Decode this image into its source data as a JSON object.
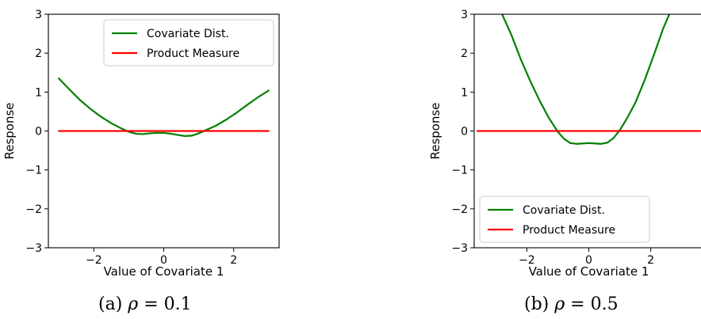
{
  "captions": [
    {
      "label": "(a)",
      "symbol": "ρ",
      "equals": " = ",
      "value": "0.1"
    },
    {
      "label": "(b)",
      "symbol": "ρ",
      "equals": " = ",
      "value": "0.5"
    }
  ],
  "colors": {
    "covariate": "#008000",
    "product": "#ff0000",
    "axis": "#000000"
  },
  "chart_data": [
    {
      "type": "line",
      "xlabel": "Value of Covariate 1",
      "ylabel": "Response",
      "xlim": [
        -3.3,
        3.3
      ],
      "ylim": [
        -3,
        3
      ],
      "xticks": [
        -2,
        0,
        2
      ],
      "yticks": [
        -3,
        -2,
        -1,
        0,
        1,
        2,
        3
      ],
      "xtick_labels": [
        "−2",
        "0",
        "2"
      ],
      "ytick_labels": [
        "−3",
        "−2",
        "−1",
        "0",
        "1",
        "2",
        "3"
      ],
      "legend_position": "top-right",
      "grid": false,
      "series": [
        {
          "name": "Covariate Dist.",
          "color": "#008000",
          "x": [
            -3.0,
            -2.7,
            -2.4,
            -2.1,
            -1.8,
            -1.5,
            -1.2,
            -1.0,
            -0.8,
            -0.6,
            -0.4,
            -0.2,
            0.0,
            0.2,
            0.4,
            0.6,
            0.8,
            1.0,
            1.2,
            1.5,
            1.8,
            2.1,
            2.4,
            2.7,
            3.0
          ],
          "y": [
            1.35,
            1.07,
            0.8,
            0.57,
            0.37,
            0.2,
            0.06,
            -0.02,
            -0.07,
            -0.08,
            -0.06,
            -0.05,
            -0.05,
            -0.07,
            -0.1,
            -0.13,
            -0.12,
            -0.06,
            0.02,
            0.14,
            0.3,
            0.48,
            0.68,
            0.87,
            1.04
          ]
        },
        {
          "name": "Product Measure",
          "color": "#ff0000",
          "x": [
            -3.0,
            3.0
          ],
          "y": [
            0,
            0
          ]
        }
      ]
    },
    {
      "type": "line",
      "xlabel": "Value of Covariate 1",
      "ylabel": "Response",
      "xlim": [
        -3.7,
        3.7
      ],
      "ylim": [
        -3,
        3
      ],
      "xticks": [
        -2,
        0,
        2
      ],
      "yticks": [
        -3,
        -2,
        -1,
        0,
        1,
        2,
        3
      ],
      "xtick_labels": [
        "−2",
        "0",
        "2"
      ],
      "ytick_labels": [
        "−3",
        "−2",
        "−1",
        "0",
        "1",
        "2",
        "3"
      ],
      "legend_position": "bottom-left",
      "grid": false,
      "series": [
        {
          "name": "Covariate Dist.",
          "color": "#008000",
          "x": [
            -2.8,
            -2.5,
            -2.2,
            -1.9,
            -1.6,
            -1.3,
            -1.0,
            -0.8,
            -0.6,
            -0.4,
            -0.2,
            0.0,
            0.2,
            0.4,
            0.6,
            0.8,
            1.0,
            1.2,
            1.5,
            1.8,
            2.1,
            2.4,
            2.6
          ],
          "y": [
            3.0,
            2.47,
            1.85,
            1.3,
            0.8,
            0.35,
            -0.02,
            -0.2,
            -0.31,
            -0.33,
            -0.32,
            -0.31,
            -0.32,
            -0.33,
            -0.3,
            -0.18,
            0.02,
            0.28,
            0.72,
            1.3,
            1.95,
            2.63,
            3.0
          ]
        },
        {
          "name": "Product Measure",
          "color": "#ff0000",
          "x": [
            -3.6,
            3.6
          ],
          "y": [
            0,
            0
          ]
        }
      ]
    }
  ]
}
